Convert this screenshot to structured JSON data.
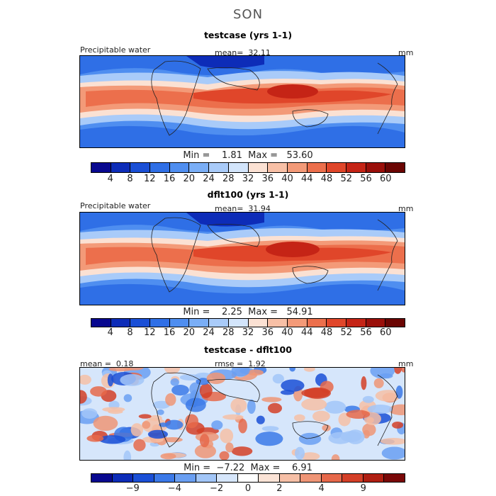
{
  "figure_title": "SON",
  "colors": {
    "abs_scale": [
      "#08088f",
      "#0d2cb8",
      "#1a4fd6",
      "#2f6fe6",
      "#4f8ef0",
      "#7aaef6",
      "#a9cbf9",
      "#d3e5fb",
      "#fbe1d3",
      "#f8c0a6",
      "#f39a78",
      "#ec6f4c",
      "#e0462a",
      "#c52416",
      "#9a0f0a",
      "#6b0503"
    ],
    "diff_scale": [
      "#08088f",
      "#0d2cb8",
      "#1a4fd6",
      "#3b79e8",
      "#6a9ff2",
      "#a2c6f8",
      "#d6e6fb",
      "#ffffff",
      "#fbe3d6",
      "#f6bfa6",
      "#ef9576",
      "#e6684a",
      "#d43f27",
      "#b01f12",
      "#7a0808"
    ]
  },
  "chart_data": [
    {
      "type": "heatmap",
      "title": "testcase (yrs 1-1)",
      "variable": "Precipitable water",
      "units": "mm",
      "mean_label": "mean=",
      "mean": "32.11",
      "min_label": "Min =",
      "min": "1.81",
      "max_label": "Max =",
      "max": "53.60",
      "colorbar_ticks": [
        "4",
        "8",
        "12",
        "16",
        "20",
        "24",
        "28",
        "32",
        "36",
        "40",
        "44",
        "48",
        "52",
        "56",
        "60"
      ]
    },
    {
      "type": "heatmap",
      "title": "dflt100 (yrs 1-1)",
      "variable": "Precipitable water",
      "units": "mm",
      "mean_label": "mean=",
      "mean": "31.94",
      "min_label": "Min =",
      "min": "2.25",
      "max_label": "Max =",
      "max": "54.91",
      "colorbar_ticks": [
        "4",
        "8",
        "12",
        "16",
        "20",
        "24",
        "28",
        "32",
        "36",
        "40",
        "44",
        "48",
        "52",
        "56",
        "60"
      ]
    },
    {
      "type": "heatmap",
      "title": "testcase - dflt100",
      "units": "mm",
      "mean_label": "mean =",
      "mean": "0.18",
      "rmse_label": "rmse =",
      "rmse": "1.92",
      "min_label": "Min =",
      "min": "−7.22",
      "max_label": "Max =",
      "max": "6.91",
      "colorbar_ticks": [
        "−9",
        "−4",
        "−2",
        "0",
        "2",
        "4",
        "9"
      ]
    }
  ]
}
